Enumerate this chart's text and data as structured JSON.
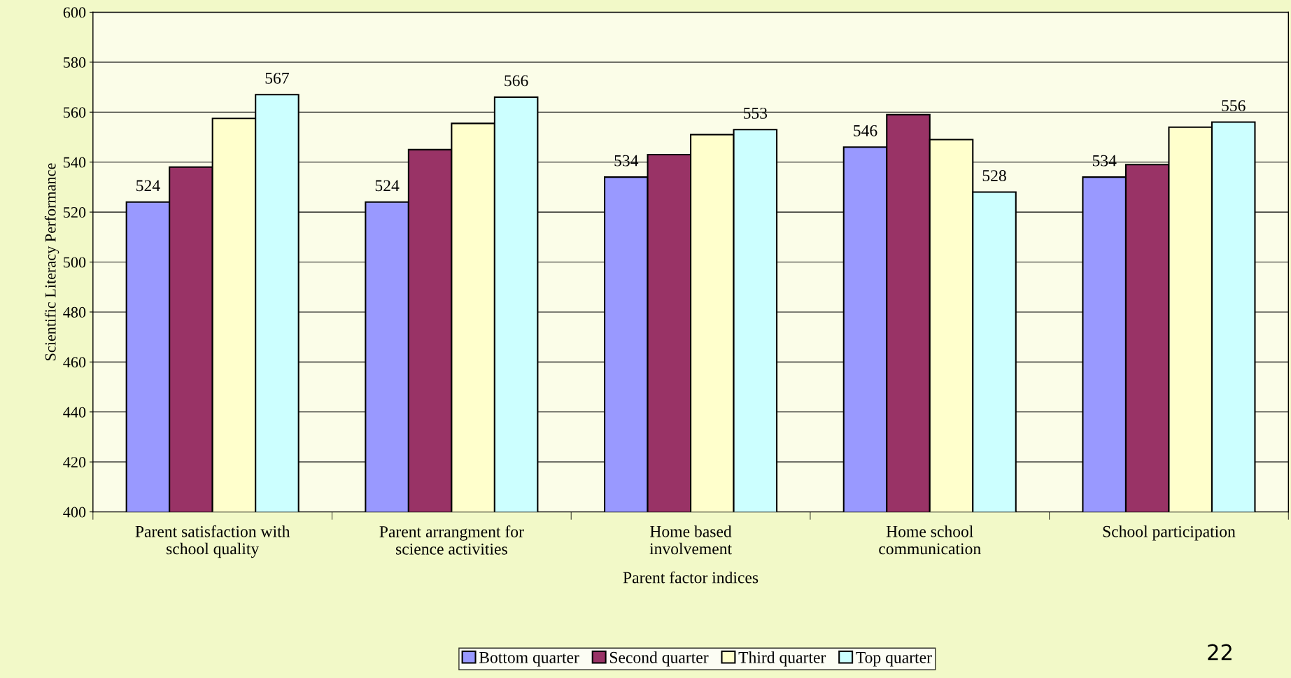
{
  "chart_data": {
    "type": "bar",
    "xlabel": "Parent factor indices",
    "ylabel": "Scientific Literacy Performance",
    "categories": [
      "Parent satisfaction with\nschool quality",
      "Parent arrangment for\nscience activities",
      "Home based\ninvolvement",
      "Home school\ncommunication",
      "School participation"
    ],
    "series": [
      {
        "name": "Bottom quarter",
        "color": "#9999ff",
        "values": [
          524,
          524,
          534,
          546,
          534
        ],
        "value_labels": [
          "524",
          "524",
          "534",
          "546",
          "534"
        ]
      },
      {
        "name": "Second quarter",
        "color": "#993366",
        "values": [
          538,
          545,
          543,
          559,
          539
        ],
        "value_labels": [
          null,
          null,
          null,
          null,
          null
        ]
      },
      {
        "name": "Third quarter",
        "color": "#ffffcc",
        "values": [
          557.5,
          555.5,
          551,
          549,
          554
        ],
        "value_labels": [
          null,
          null,
          null,
          null,
          null
        ]
      },
      {
        "name": "Top quarter",
        "color": "#ccffff",
        "values": [
          567,
          566,
          553,
          528,
          556
        ],
        "value_labels": [
          "567",
          "566",
          "553",
          "528",
          "556"
        ]
      }
    ],
    "ylim": [
      400,
      600
    ],
    "yticks": [
      400,
      420,
      440,
      460,
      480,
      500,
      520,
      540,
      560,
      580,
      600
    ],
    "grid": "y",
    "legend": "bottom",
    "annotations": [
      "22"
    ]
  }
}
